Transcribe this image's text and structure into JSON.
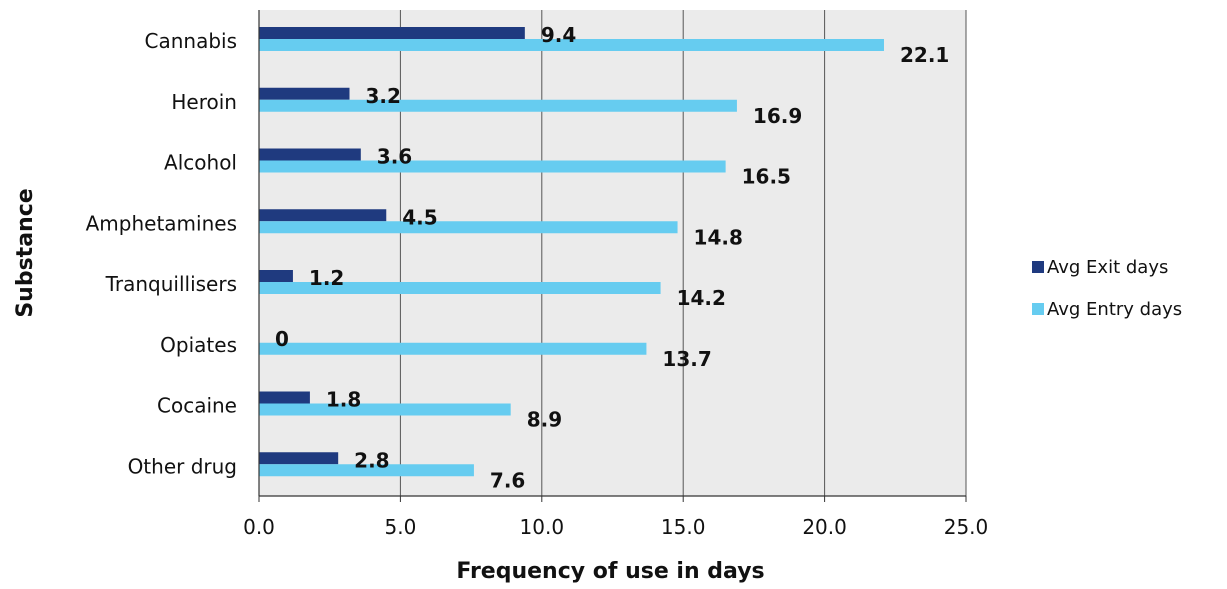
{
  "chart_data": {
    "type": "bar",
    "orientation": "horizontal",
    "categories": [
      "Cannabis",
      "Heroin",
      "Alcohol",
      "Amphetamines",
      "Tranquillisers",
      "Opiates",
      "Cocaine",
      "Other drug"
    ],
    "series": [
      {
        "name": "Avg Exit days",
        "values": [
          9.4,
          3.2,
          3.6,
          4.5,
          1.2,
          0,
          1.8,
          2.8
        ],
        "color": "#1f3a7f"
      },
      {
        "name": "Avg Entry days",
        "values": [
          22.1,
          16.9,
          16.5,
          14.8,
          14.2,
          13.7,
          8.9,
          7.6
        ],
        "color": "#66ccf0"
      }
    ],
    "data_labels": {
      "exit": [
        "9.4",
        "3.2",
        "3.6",
        "4.5",
        "1.2",
        "0",
        "1.8",
        "2.8"
      ],
      "entry": [
        "22.1",
        "16.9",
        "16.5",
        "14.8",
        "14.2",
        "13.7",
        "8.9",
        "7.6"
      ]
    },
    "xlabel": "Frequency of use in days",
    "ylabel": "Substance",
    "xlim": [
      0,
      25
    ],
    "xticks": [
      0,
      5,
      10,
      15,
      20,
      25
    ],
    "xtick_labels": [
      "0.0",
      "5.0",
      "10.0",
      "15.0",
      "20.0",
      "25.0"
    ],
    "grid": "vertical",
    "legend": "right",
    "plot_background": "#ebebeb"
  }
}
